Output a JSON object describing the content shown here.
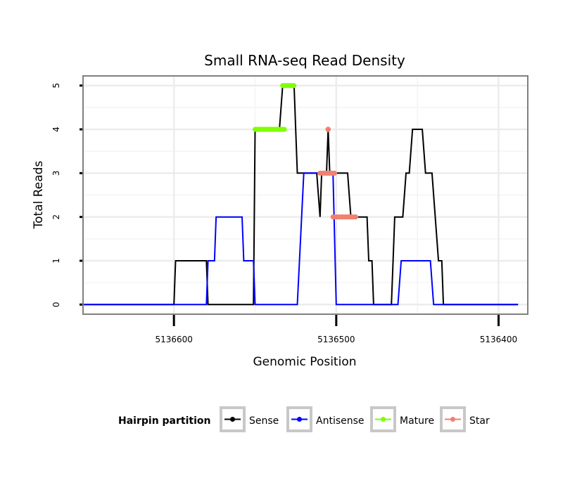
{
  "chart_data": {
    "type": "line",
    "title": "Small RNA-seq Read Density",
    "xlabel": "Genomic Position",
    "ylabel": "Total Reads",
    "x_reversed": true,
    "xlim": [
      5136656,
      5136382
    ],
    "ylim": [
      -0.22,
      5.22
    ],
    "x_ticks": [
      5136600,
      5136500,
      5136400
    ],
    "x_tick_labels": [
      "5136600",
      "5136500",
      "5136400"
    ],
    "y_ticks": [
      0,
      1,
      2,
      3,
      4,
      5
    ],
    "y_tick_labels": [
      "0",
      "1",
      "2",
      "3",
      "4",
      "5"
    ],
    "grid": true,
    "legend_title": "Hairpin partition",
    "legend_position": "bottom",
    "series": [
      {
        "name": "Sense",
        "color": "#000000",
        "style": "line",
        "points": [
          [
            5136656,
            0
          ],
          [
            5136600,
            0
          ],
          [
            5136599,
            1
          ],
          [
            5136580,
            1
          ],
          [
            5136579,
            0
          ],
          [
            5136551,
            0
          ],
          [
            5136550,
            4
          ],
          [
            5136535,
            4
          ],
          [
            5136533,
            5
          ],
          [
            5136526,
            5
          ],
          [
            5136524,
            3
          ],
          [
            5136512,
            3
          ],
          [
            5136510,
            2
          ],
          [
            5136509,
            3
          ],
          [
            5136506,
            3
          ],
          [
            5136505,
            4
          ],
          [
            5136504,
            3
          ],
          [
            5136493,
            3
          ],
          [
            5136491,
            2
          ],
          [
            5136481,
            2
          ],
          [
            5136480,
            1
          ],
          [
            5136478,
            1
          ],
          [
            5136477,
            0
          ],
          [
            5136466,
            0
          ],
          [
            5136465,
            1
          ],
          [
            5136464,
            2
          ],
          [
            5136459,
            2
          ],
          [
            5136457,
            3
          ],
          [
            5136455,
            3
          ],
          [
            5136453,
            4
          ],
          [
            5136447,
            4
          ],
          [
            5136445,
            3
          ],
          [
            5136441,
            3
          ],
          [
            5136439,
            2
          ],
          [
            5136437,
            1
          ],
          [
            5136435,
            1
          ],
          [
            5136434,
            0
          ],
          [
            5136388,
            0
          ]
        ]
      },
      {
        "name": "Antisense",
        "color": "#0000ff",
        "style": "line",
        "points": [
          [
            5136656,
            0
          ],
          [
            5136580,
            0
          ],
          [
            5136579,
            1
          ],
          [
            5136575,
            1
          ],
          [
            5136574,
            2
          ],
          [
            5136558,
            2
          ],
          [
            5136557,
            1
          ],
          [
            5136551,
            1
          ],
          [
            5136550,
            0
          ],
          [
            5136524,
            0
          ],
          [
            5136520,
            3
          ],
          [
            5136502,
            3
          ],
          [
            5136500,
            0
          ],
          [
            5136462,
            0
          ],
          [
            5136460,
            1
          ],
          [
            5136442,
            1
          ],
          [
            5136440,
            0
          ],
          [
            5136388,
            0
          ]
        ]
      },
      {
        "name": "Mature",
        "color": "#7fff00",
        "style": "segments",
        "segments": [
          {
            "x": [
              5136550,
              5136532
            ],
            "y": 4
          },
          {
            "x": [
              5136533,
              5136526
            ],
            "y": 5
          }
        ]
      },
      {
        "name": "Star",
        "color": "#f08070",
        "style": "segments",
        "segments": [
          {
            "x": [
              5136510,
              5136501
            ],
            "y": 3
          },
          {
            "x": [
              5136502,
              5136488
            ],
            "y": 2
          },
          {
            "x": [
              5136505,
              5136505
            ],
            "y": 4
          }
        ]
      }
    ]
  }
}
